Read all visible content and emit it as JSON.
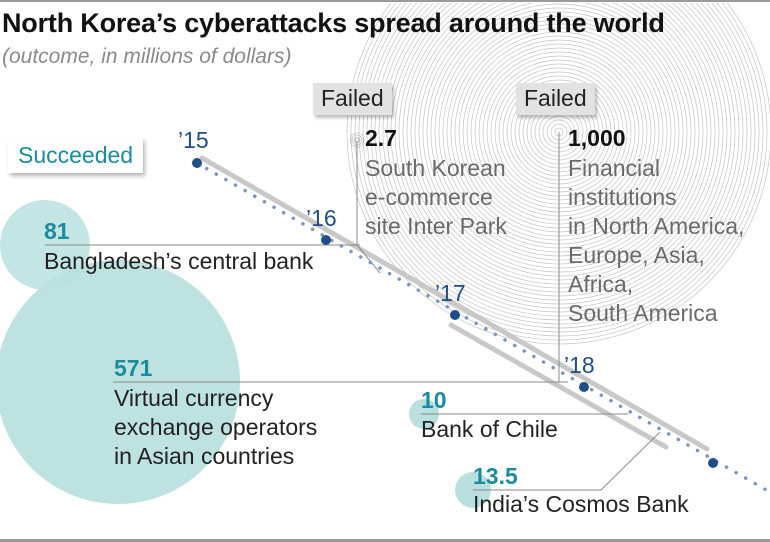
{
  "title": "North Korea’s cyberattacks spread around the world",
  "subtitle": "(outcome, in millions of dollars)",
  "legend": {
    "succeeded_label": "Succeeded",
    "failed_label_1": "Failed",
    "failed_label_2": "Failed"
  },
  "timeline": {
    "years": [
      "’15",
      "’16",
      "’17",
      "’18"
    ]
  },
  "attacks": [
    {
      "value": "81",
      "label": [
        "Bangladesh’s central bank"
      ],
      "outcome": "Succeeded",
      "color": "#1a8c9c"
    },
    {
      "value": "571",
      "label": [
        "Virtual currency",
        "exchange operators",
        "in Asian countries"
      ],
      "outcome": "Succeeded",
      "color": "#1a8c9c"
    },
    {
      "value": "10",
      "label": [
        "Bank of Chile"
      ],
      "outcome": "Succeeded",
      "color": "#1a8c9c"
    },
    {
      "value": "13.5",
      "label": [
        "India’s Cosmos Bank"
      ],
      "outcome": "Succeeded",
      "color": "#1a8c9c"
    },
    {
      "value": "2.7",
      "label": [
        "South Korean",
        "e-commerce",
        "site Inter Park"
      ],
      "outcome": "Failed",
      "color": "#111111"
    },
    {
      "value": "1,000",
      "label": [
        "Financial",
        "institutions",
        "in North America,",
        "Europe, Asia,",
        "Africa,",
        "South America"
      ],
      "outcome": "Failed",
      "color": "#111111"
    }
  ],
  "colors": {
    "succeeded_bubble": "#b9e0de",
    "succeeded_text": "#1a8c9c",
    "timeline_dot": "#1f4f86",
    "timeline_dots_small": "#7f93bd",
    "grey_bar": "#c8c8c8",
    "failed_rings": "#c4c4c4"
  },
  "chart_data": {
    "type": "scatter",
    "title": "North Korea’s cyberattacks spread around the world",
    "subtitle": "(outcome, in millions of dollars)",
    "xlabel": "",
    "ylabel": "",
    "categories": [
      "2015",
      "2016",
      "2017",
      "2018"
    ],
    "legend": [
      "Succeeded",
      "Failed"
    ],
    "series": [
      {
        "name": "Succeeded",
        "points": [
          {
            "label": "Bangladesh’s central bank",
            "year": "2016",
            "value": 81
          },
          {
            "label": "Virtual currency exchange operators in Asian countries",
            "year": "2017-2018",
            "value": 571
          },
          {
            "label": "Bank of Chile",
            "year": "2018",
            "value": 10
          },
          {
            "label": "India’s Cosmos Bank",
            "year": "2018",
            "value": 13.5
          }
        ]
      },
      {
        "name": "Failed",
        "points": [
          {
            "label": "South Korean e-commerce site Inter Park",
            "year": "2016",
            "value": 2.7
          },
          {
            "label": "Financial institutions in North America, Europe, Asia, Africa, South America",
            "year": "2018",
            "value": 1000
          }
        ]
      }
    ],
    "grid": false,
    "legend_position": "inline"
  }
}
